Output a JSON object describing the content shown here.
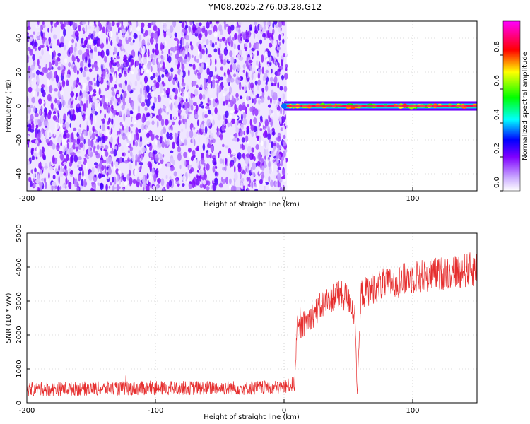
{
  "title": "YM08.2025.276.03.28.G12",
  "chart_data": [
    {
      "type": "heatmap",
      "xlabel": "Height of straight line (km)",
      "ylabel": "Frequency (Hz)",
      "xlim": [
        -200,
        150
      ],
      "ylim": [
        -50,
        50
      ],
      "xticks": [
        -200,
        -100,
        0,
        100
      ],
      "yticks": [
        -40,
        -20,
        0,
        20,
        40
      ],
      "regions": [
        {
          "name": "noise",
          "x": [
            -200,
            2
          ],
          "y": [
            -50,
            50
          ],
          "amplitude_range": [
            0.0,
            0.25
          ]
        },
        {
          "name": "signal",
          "x": [
            0,
            150
          ],
          "y": [
            -1,
            1
          ],
          "amplitude_range": [
            0.7,
            1.0
          ]
        }
      ],
      "colorbar": {
        "label": "Normalized spectral amplitude",
        "range": [
          0,
          1
        ],
        "ticks": [
          "0.0",
          "0.2",
          "0.4",
          "0.6",
          "0.8"
        ],
        "colors": [
          "#ffffff",
          "#7f00ff",
          "#0000ff",
          "#00ffff",
          "#00ff00",
          "#ffff00",
          "#ff0000",
          "#ff00ff"
        ]
      },
      "grid": true
    },
    {
      "type": "line",
      "xlabel": "Height of straight line (km)",
      "ylabel": "SNR (10 * v/v)",
      "xlim": [
        -200,
        150
      ],
      "ylim": [
        0,
        5000
      ],
      "xticks": [
        -200,
        -100,
        0,
        100
      ],
      "yticks": [
        0,
        1000,
        2000,
        3000,
        4000,
        5000
      ],
      "color": "#e62e2e",
      "x": [
        -200,
        -150,
        -100,
        -50,
        -20,
        -5,
        0,
        8,
        10,
        20,
        30,
        40,
        50,
        55,
        57,
        60,
        70,
        75,
        80,
        90,
        100,
        120,
        150
      ],
      "y": [
        400,
        420,
        430,
        440,
        440,
        450,
        460,
        560,
        2100,
        2500,
        2900,
        3200,
        3100,
        2600,
        300,
        3200,
        3400,
        3500,
        3500,
        3600,
        3700,
        3800,
        3950
      ],
      "noise_amplitude": 350,
      "grid": true
    }
  ]
}
